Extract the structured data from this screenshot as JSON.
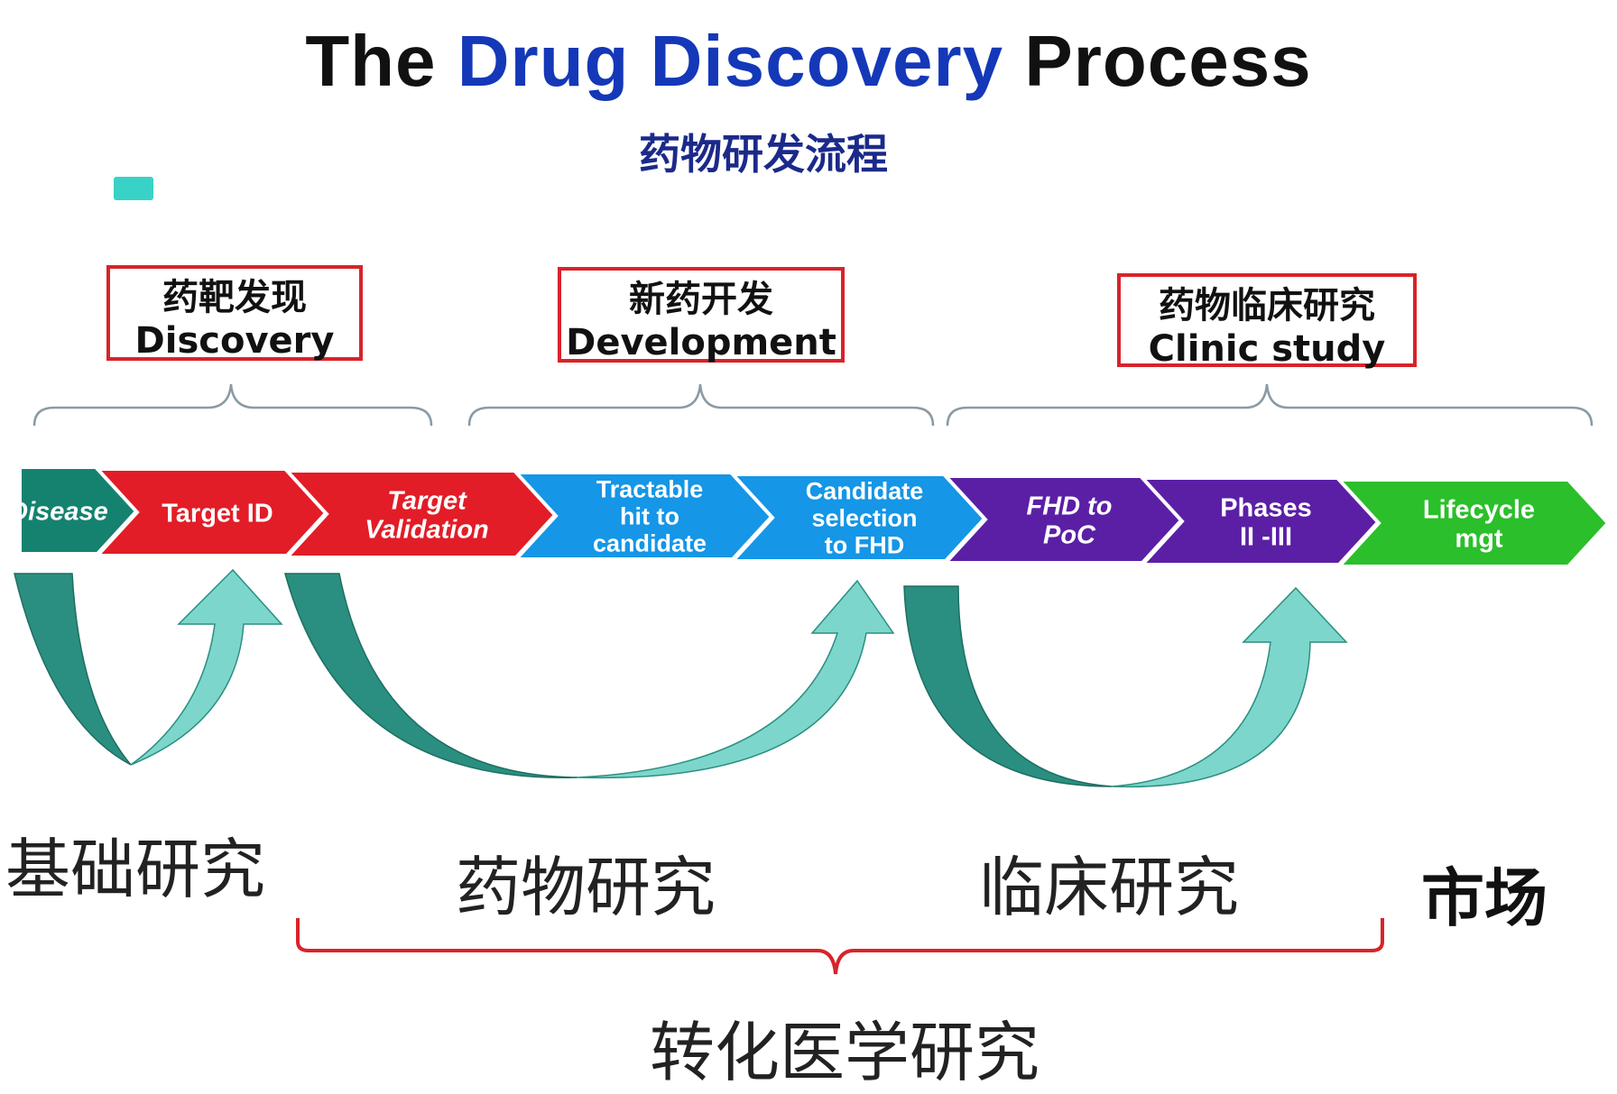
{
  "title": {
    "part1": "The",
    "highlight": "Drug Discovery",
    "part2": "Process"
  },
  "subtitle": "药物研发流程",
  "phases": [
    {
      "cn": "药靶发现",
      "en": "Discovery"
    },
    {
      "cn": "新药开发",
      "en": "Development"
    },
    {
      "cn": "药物临床研究",
      "en": "Clinic study"
    }
  ],
  "stages": [
    {
      "lines": [
        "Disease"
      ],
      "color": "#15826f",
      "italic": true
    },
    {
      "lines": [
        "Target ID"
      ],
      "color": "#e21d27",
      "italic": false
    },
    {
      "lines": [
        "Target",
        "Validation"
      ],
      "color": "#e21d27",
      "italic": true
    },
    {
      "lines": [
        "Tractable",
        "hit to",
        "candidate"
      ],
      "color": "#1596e6",
      "italic": false
    },
    {
      "lines": [
        "Candidate",
        "selection",
        "to FHD"
      ],
      "color": "#1596e6",
      "italic": false
    },
    {
      "lines": [
        "FHD to",
        "PoC"
      ],
      "color": "#5b1fa6",
      "italic": true
    },
    {
      "lines": [
        "Phases",
        "II -III"
      ],
      "color": "#5b1fa6",
      "italic": false
    },
    {
      "lines": [
        "Lifecycle",
        "mgt"
      ],
      "color": "#2bbf2b",
      "italic": false
    }
  ],
  "bottom_labels": {
    "basic": "基础研究",
    "drug": "药物研究",
    "clinical": "临床研究",
    "market": "市场",
    "translational": "转化医学研究"
  },
  "colors": {
    "arrow_dark": "#2a8f80",
    "arrow_light": "#7dd6cc",
    "bracket": "#d8232a",
    "brace": "#8a9aa4"
  }
}
